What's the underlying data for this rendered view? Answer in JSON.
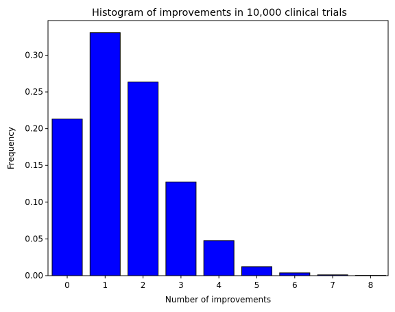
{
  "chart_data": {
    "type": "bar",
    "title": "Histogram of improvements in 10,000 clinical trials",
    "xlabel": "Number of improvements",
    "ylabel": "Frequency",
    "categories": [
      "0",
      "1",
      "2",
      "3",
      "4",
      "5",
      "6",
      "7",
      "8"
    ],
    "values": [
      0.2132,
      0.3306,
      0.2635,
      0.1275,
      0.0477,
      0.0122,
      0.0038,
      0.0011,
      0.0004
    ],
    "ylim": [
      0,
      0.3471
    ],
    "yticks": [
      0.0,
      0.05,
      0.1,
      0.15,
      0.2,
      0.25,
      0.3
    ],
    "ytick_labels": [
      "0.00",
      "0.05",
      "0.10",
      "0.15",
      "0.20",
      "0.25",
      "0.30"
    ],
    "grid": false,
    "legend": "none",
    "bar_color": "#0000ff",
    "edge_color": "#000000"
  }
}
